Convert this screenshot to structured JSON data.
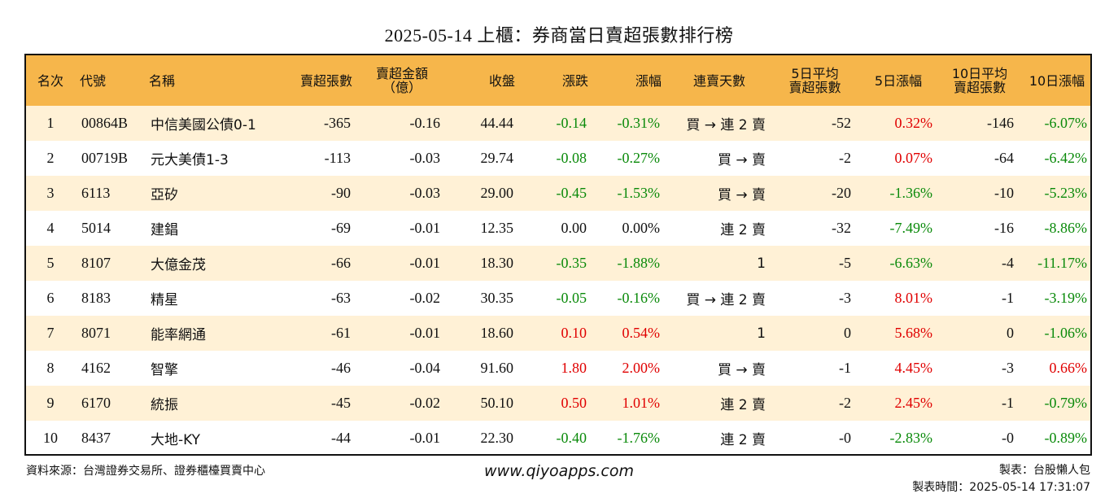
{
  "title": "2025-05-14 上櫃：券商當日賣超張數排行榜",
  "colors": {
    "header_bg": "#f6b64b",
    "stripe_bg": "#fff1d6",
    "up": "#e00000",
    "down": "#0a8a0a",
    "neutral": "#111111"
  },
  "headers": [
    "名次",
    "代號",
    "名稱",
    "賣超張數",
    "賣超金額\n（億）",
    "收盤",
    "漲跌",
    "漲幅",
    "連賣天數",
    "5日平均\n賣超張數",
    "5日漲幅",
    "10日平均\n賣超張數",
    "10日漲幅"
  ],
  "rows": [
    {
      "rank": "1",
      "code": "00864B",
      "name": "中信美國公債0-1",
      "sell_vol": "-365",
      "sell_amt": "-0.16",
      "close": "44.44",
      "change": "-0.14",
      "change_pct": "-0.31%",
      "streak": "買 → 連 2 賣",
      "avg5": "-52",
      "pct5": "0.32%",
      "avg10": "-146",
      "pct10": "-6.07%"
    },
    {
      "rank": "2",
      "code": "00719B",
      "name": "元大美債1-3",
      "sell_vol": "-113",
      "sell_amt": "-0.03",
      "close": "29.74",
      "change": "-0.08",
      "change_pct": "-0.27%",
      "streak": "買 → 賣",
      "avg5": "-2",
      "pct5": "0.07%",
      "avg10": "-64",
      "pct10": "-6.42%"
    },
    {
      "rank": "3",
      "code": "6113",
      "name": "亞矽",
      "sell_vol": "-90",
      "sell_amt": "-0.03",
      "close": "29.00",
      "change": "-0.45",
      "change_pct": "-1.53%",
      "streak": "買 → 賣",
      "avg5": "-20",
      "pct5": "-1.36%",
      "avg10": "-10",
      "pct10": "-5.23%"
    },
    {
      "rank": "4",
      "code": "5014",
      "name": "建錩",
      "sell_vol": "-69",
      "sell_amt": "-0.01",
      "close": "12.35",
      "change": "0.00",
      "change_pct": "0.00%",
      "streak": "連 2 賣",
      "avg5": "-32",
      "pct5": "-7.49%",
      "avg10": "-16",
      "pct10": "-8.86%"
    },
    {
      "rank": "5",
      "code": "8107",
      "name": "大億金茂",
      "sell_vol": "-66",
      "sell_amt": "-0.01",
      "close": "18.30",
      "change": "-0.35",
      "change_pct": "-1.88%",
      "streak": "1",
      "avg5": "-5",
      "pct5": "-6.63%",
      "avg10": "-4",
      "pct10": "-11.17%"
    },
    {
      "rank": "6",
      "code": "8183",
      "name": "精星",
      "sell_vol": "-63",
      "sell_amt": "-0.02",
      "close": "30.35",
      "change": "-0.05",
      "change_pct": "-0.16%",
      "streak": "買 → 連 2 賣",
      "avg5": "-3",
      "pct5": "8.01%",
      "avg10": "-1",
      "pct10": "-3.19%"
    },
    {
      "rank": "7",
      "code": "8071",
      "name": "能率網通",
      "sell_vol": "-61",
      "sell_amt": "-0.01",
      "close": "18.60",
      "change": "0.10",
      "change_pct": "0.54%",
      "streak": "1",
      "avg5": "0",
      "pct5": "5.68%",
      "avg10": "0",
      "pct10": "-1.06%"
    },
    {
      "rank": "8",
      "code": "4162",
      "name": "智擎",
      "sell_vol": "-46",
      "sell_amt": "-0.04",
      "close": "91.60",
      "change": "1.80",
      "change_pct": "2.00%",
      "streak": "買 → 賣",
      "avg5": "-1",
      "pct5": "4.45%",
      "avg10": "-3",
      "pct10": "0.66%"
    },
    {
      "rank": "9",
      "code": "6170",
      "name": "統振",
      "sell_vol": "-45",
      "sell_amt": "-0.02",
      "close": "50.10",
      "change": "0.50",
      "change_pct": "1.01%",
      "streak": "連 2 賣",
      "avg5": "-2",
      "pct5": "2.45%",
      "avg10": "-1",
      "pct10": "-0.79%"
    },
    {
      "rank": "10",
      "code": "8437",
      "name": "大地-KY",
      "sell_vol": "-44",
      "sell_amt": "-0.01",
      "close": "22.30",
      "change": "-0.40",
      "change_pct": "-1.76%",
      "streak": "連 2 賣",
      "avg5": "-0",
      "pct5": "-2.83%",
      "avg10": "-0",
      "pct10": "-0.89%"
    }
  ],
  "footer": {
    "source": "資料來源：台灣證券交易所、證券櫃檯買賣中心",
    "site": "www.qiyoapps.com",
    "maker": "製表：台股懶人包",
    "made_time": "製表時間：2025-05-14 17:31:07"
  }
}
